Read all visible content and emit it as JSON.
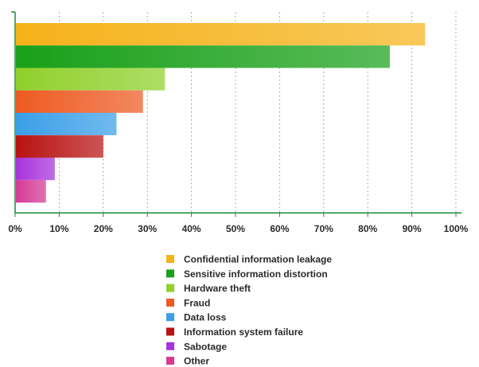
{
  "chart_data": {
    "type": "bar",
    "orientation": "horizontal",
    "categories": [
      "Confidential information leakage",
      "Sensitive information distortion",
      "Hardware theft",
      "Fraud",
      "Data loss",
      "Information system failure",
      "Sabotage",
      "Other"
    ],
    "values": [
      93,
      85,
      34,
      29,
      23,
      20,
      9,
      7
    ],
    "colors": [
      "#f5b21a",
      "#19a019",
      "#8fd02a",
      "#ee5a22",
      "#3a9fe8",
      "#b81212",
      "#a733dc",
      "#d63a95"
    ],
    "xlim": [
      0,
      100
    ],
    "x_ticks": [
      "0%",
      "10%",
      "20%",
      "30%",
      "40%",
      "50%",
      "60%",
      "70%",
      "80%",
      "90%",
      "100%"
    ],
    "grid": "vertical dashed",
    "legend_position": "bottom"
  }
}
